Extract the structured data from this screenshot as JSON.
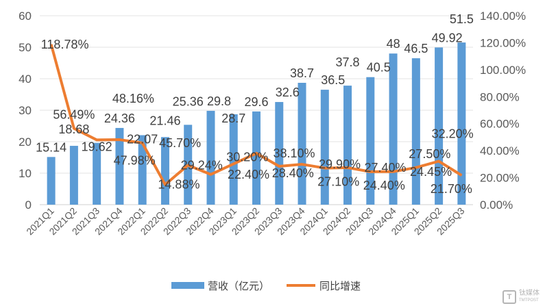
{
  "chart_data": {
    "type": "bar+line",
    "categories": [
      "2021Q1",
      "2021Q2",
      "2021Q3",
      "2021Q4",
      "2022Q1",
      "2022Q2",
      "2022Q3",
      "2022Q4",
      "2023Q1",
      "2023Q2",
      "2023Q3",
      "2023Q4",
      "2024Q1",
      "2024Q2",
      "2024Q3",
      "2024Q4",
      "2025Q1",
      "2025Q2",
      "2025Q3"
    ],
    "series": [
      {
        "name": "营收（亿元）",
        "type": "bar",
        "axis": "left",
        "color": "#5B9BD5",
        "values": [
          15.14,
          18.68,
          19.62,
          24.36,
          22.07,
          21.46,
          25.36,
          29.8,
          28.7,
          29.6,
          32.6,
          38.7,
          36.5,
          37.8,
          40.5,
          48,
          46.5,
          49.92,
          51.5
        ],
        "labels": [
          "15.14",
          "18.68",
          "19.62",
          "24.36",
          "22.07",
          "21.46",
          "25.36",
          "29.8",
          "28.7",
          "29.6",
          "32.6",
          "38.7",
          "36.5",
          "37.8",
          "40.5",
          "48",
          "46.5",
          "49.92",
          "51.5"
        ]
      },
      {
        "name": "同比增速",
        "type": "line",
        "axis": "right",
        "color": "#ED7D31",
        "values": [
          118.78,
          56.49,
          47.98,
          48.16,
          45.7,
          14.88,
          29.24,
          22.4,
          30.2,
          38.1,
          28.4,
          29.9,
          27.1,
          27.4,
          24.4,
          24.45,
          27.5,
          32.2,
          21.7
        ],
        "labels": [
          "118.78%",
          "56.49%",
          "47.98%",
          "48.16%",
          "45.70%",
          "14.88%",
          "29.24%",
          "22.40%",
          "30.20%",
          "38.10%",
          "28.40%",
          "29.90%",
          "27.10%",
          "27.40%",
          "24.40%",
          "24.45%",
          "27.50%",
          "32.20%",
          "21.70%"
        ]
      }
    ],
    "y_left": {
      "lim": [
        0,
        60
      ],
      "ticks": [
        "0",
        "10",
        "20",
        "30",
        "40",
        "50",
        "60"
      ]
    },
    "y_right": {
      "lim": [
        0,
        140
      ],
      "ticks": [
        "0.00%",
        "20.00%",
        "40.00%",
        "60.00%",
        "80.00%",
        "100.00%",
        "120.00%",
        "140.00%"
      ]
    },
    "grid": true,
    "legend": "bottom"
  },
  "watermark": {
    "text": "钛媒体",
    "sub": "TMTPOST"
  }
}
